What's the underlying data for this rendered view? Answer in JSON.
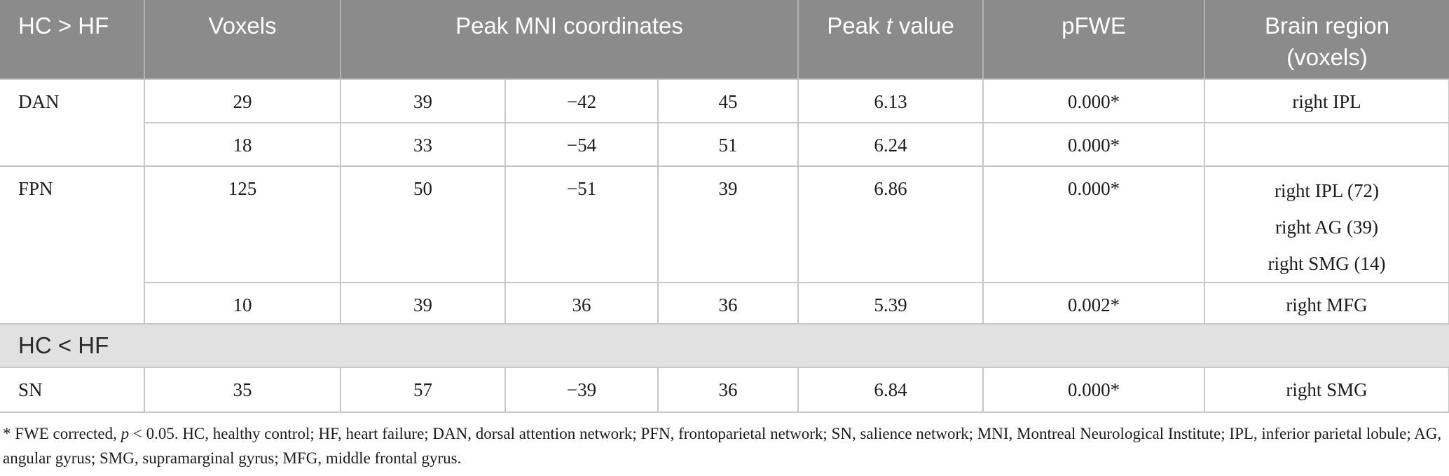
{
  "colors": {
    "header_bg": "#8b8b8b",
    "header_text": "#ffffff",
    "header_border": "#b2b2b2",
    "section_bg": "#e1e1e1",
    "body_text": "#1c1c1c",
    "border": "#c7c7c7",
    "page_bg": "#ffffff"
  },
  "table": {
    "header": {
      "contrast": "HC > HF",
      "voxels": "Voxels",
      "mni": "Peak MNI coordinates",
      "peak_t_pre": "Peak ",
      "peak_t_italic": "t",
      "peak_t_post": " value",
      "pfwe": "pFWE",
      "region_line1": "Brain region",
      "region_line2": "(voxels)"
    },
    "body": {
      "rows": [
        {
          "network": "DAN",
          "voxels": "29",
          "x": "39",
          "y": "−42",
          "z": "45",
          "t": "6.13",
          "pfwe": "0.000*",
          "region": "right IPL"
        },
        {
          "voxels": "18",
          "x": "33",
          "y": "−54",
          "z": "51",
          "t": "6.24",
          "pfwe": "0.000*",
          "region": ""
        },
        {
          "network": "FPN",
          "voxels": "125",
          "x": "50",
          "y": "−51",
          "z": "39",
          "t": "6.86",
          "pfwe": "0.000*",
          "region_lines": [
            "right IPL (72)",
            "right AG (39)",
            "right SMG (14)"
          ]
        },
        {
          "voxels": "10",
          "x": "39",
          "y": "36",
          "z": "36",
          "t": "5.39",
          "pfwe": "0.002*",
          "region": "right MFG"
        }
      ],
      "section2_label": "HC < HF",
      "rows2": [
        {
          "network": "SN",
          "voxels": "35",
          "x": "57",
          "y": "−39",
          "z": "36",
          "t": "6.84",
          "pfwe": "0.000*",
          "region": "right SMG"
        }
      ]
    },
    "footnote": {
      "prefix": "* FWE corrected, ",
      "p_italic": "p",
      "rest": " < 0.05. HC, healthy control; HF, heart failure; DAN, dorsal attention network; PFN, frontoparietal network; SN, salience network; MNI, Montreal Neurological Institute; IPL, inferior parietal lobule; AG, angular gyrus; SMG, supramarginal gyrus; MFG, middle frontal gyrus."
    }
  }
}
